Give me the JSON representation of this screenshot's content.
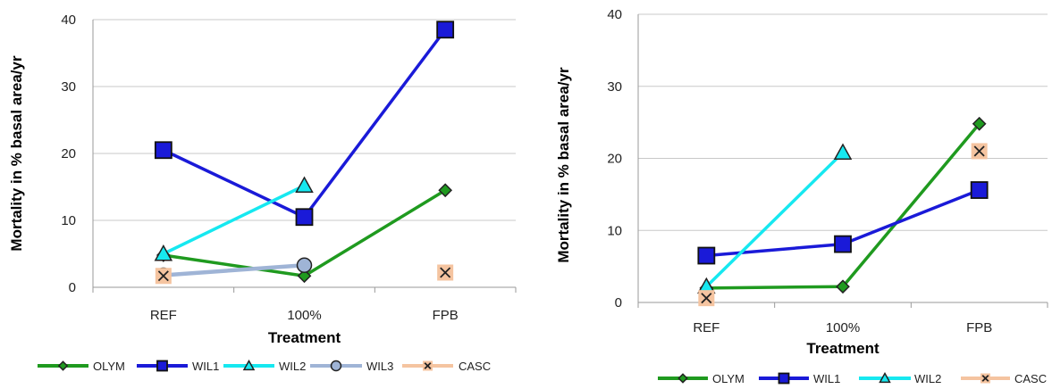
{
  "chart_data": [
    {
      "type": "line",
      "categories": [
        "REF",
        "100%",
        "FPB"
      ],
      "xlabel": "Treatment",
      "ylabel": "Mortality in % basal area/yr",
      "ylim": [
        0,
        40
      ],
      "yticks": [
        0,
        10,
        20,
        30,
        40
      ],
      "grid": true,
      "legend": "bottom",
      "series": [
        {
          "name": "OLYM",
          "values": [
            4.8,
            1.7,
            14.5
          ],
          "color": "#1f9a1f",
          "marker": "diamond"
        },
        {
          "name": "WIL1",
          "values": [
            20.5,
            10.5,
            38.5
          ],
          "color": "#1a1ad8",
          "marker": "square"
        },
        {
          "name": "WIL2",
          "values": [
            5.0,
            15.2,
            null
          ],
          "color": "#16e8f0",
          "marker": "triangle"
        },
        {
          "name": "WIL3",
          "values": [
            1.8,
            3.3,
            null
          ],
          "color": "#9fb4d6",
          "marker": "circle"
        },
        {
          "name": "CASC",
          "values": [
            1.7,
            null,
            2.2
          ],
          "color": "#f5c4a0",
          "marker": "x"
        }
      ]
    },
    {
      "type": "line",
      "categories": [
        "REF",
        "100%",
        "FPB"
      ],
      "xlabel": "Treatment",
      "ylabel": "Mortality in % basal area/yr",
      "ylim": [
        0,
        40
      ],
      "yticks": [
        0,
        10,
        20,
        30,
        40
      ],
      "grid": true,
      "legend": "bottom",
      "series": [
        {
          "name": "OLYM",
          "values": [
            2.0,
            2.2,
            24.8
          ],
          "color": "#1f9a1f",
          "marker": "diamond"
        },
        {
          "name": "WIL1",
          "values": [
            6.5,
            8.1,
            15.6
          ],
          "color": "#1a1ad8",
          "marker": "square"
        },
        {
          "name": "WIL2",
          "values": [
            2.2,
            20.8,
            null
          ],
          "color": "#16e8f0",
          "marker": "triangle"
        },
        {
          "name": "CASC",
          "values": [
            0.6,
            null,
            21.0
          ],
          "color": "#f5c4a0",
          "marker": "x"
        }
      ]
    }
  ]
}
